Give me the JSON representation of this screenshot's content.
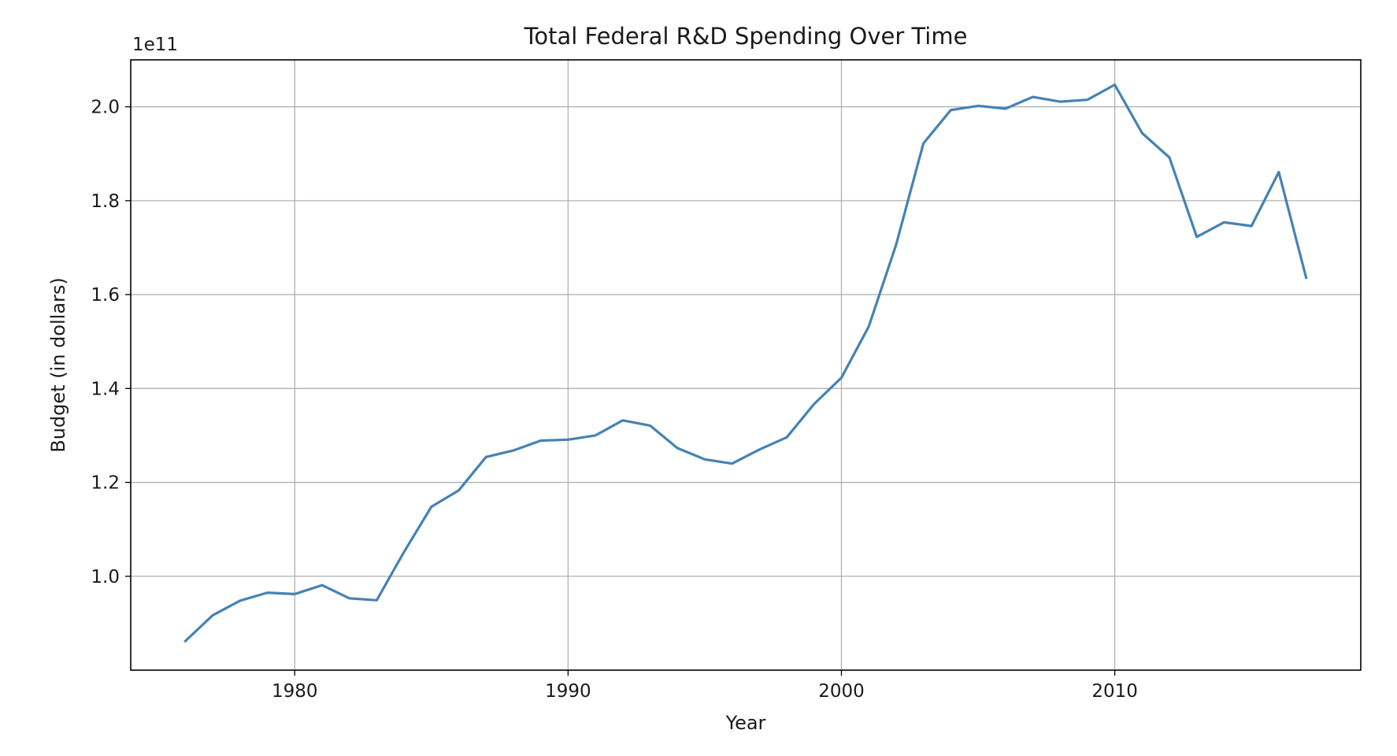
{
  "chart_data": {
    "type": "line",
    "title": "Total Federal R&D Spending Over Time",
    "xlabel": "Year",
    "ylabel": "Budget (in dollars)",
    "y_offset_label": "1e11",
    "y_scale": 100000000000,
    "xlim": [
      1974,
      2019
    ],
    "ylim": [
      0.8,
      2.1
    ],
    "x_ticks": [
      1980,
      1990,
      2000,
      2010
    ],
    "x_tick_labels": [
      "1980",
      "1990",
      "2000",
      "2010"
    ],
    "y_ticks": [
      1.0,
      1.2,
      1.4,
      1.6,
      1.8,
      2.0
    ],
    "y_tick_labels": [
      "1.0",
      "1.2",
      "1.4",
      "1.6",
      "1.8",
      "2.0"
    ],
    "grid": true,
    "series": [
      {
        "color": "#4682b4",
        "x": [
          1976,
          1977,
          1978,
          1979,
          1980,
          1981,
          1982,
          1983,
          1984,
          1985,
          1986,
          1987,
          1988,
          1989,
          1990,
          1991,
          1992,
          1993,
          1994,
          1995,
          1996,
          1997,
          1998,
          1999,
          2000,
          2001,
          2002,
          2003,
          2004,
          2005,
          2006,
          2007,
          2008,
          2009,
          2010,
          2011,
          2012,
          2013,
          2014,
          2015,
          2016,
          2017
        ],
        "y": [
          0.862,
          0.917,
          0.948,
          0.965,
          0.962,
          0.981,
          0.953,
          0.949,
          1.052,
          1.148,
          1.183,
          1.254,
          1.268,
          1.289,
          1.291,
          1.3,
          1.332,
          1.321,
          1.273,
          1.249,
          1.24,
          1.27,
          1.296,
          1.367,
          1.423,
          1.532,
          1.706,
          1.922,
          1.993,
          2.002,
          1.996,
          2.021,
          2.011,
          2.015,
          2.047,
          1.944,
          1.892,
          1.723,
          1.754,
          1.746,
          1.861,
          1.636
        ]
      }
    ]
  }
}
